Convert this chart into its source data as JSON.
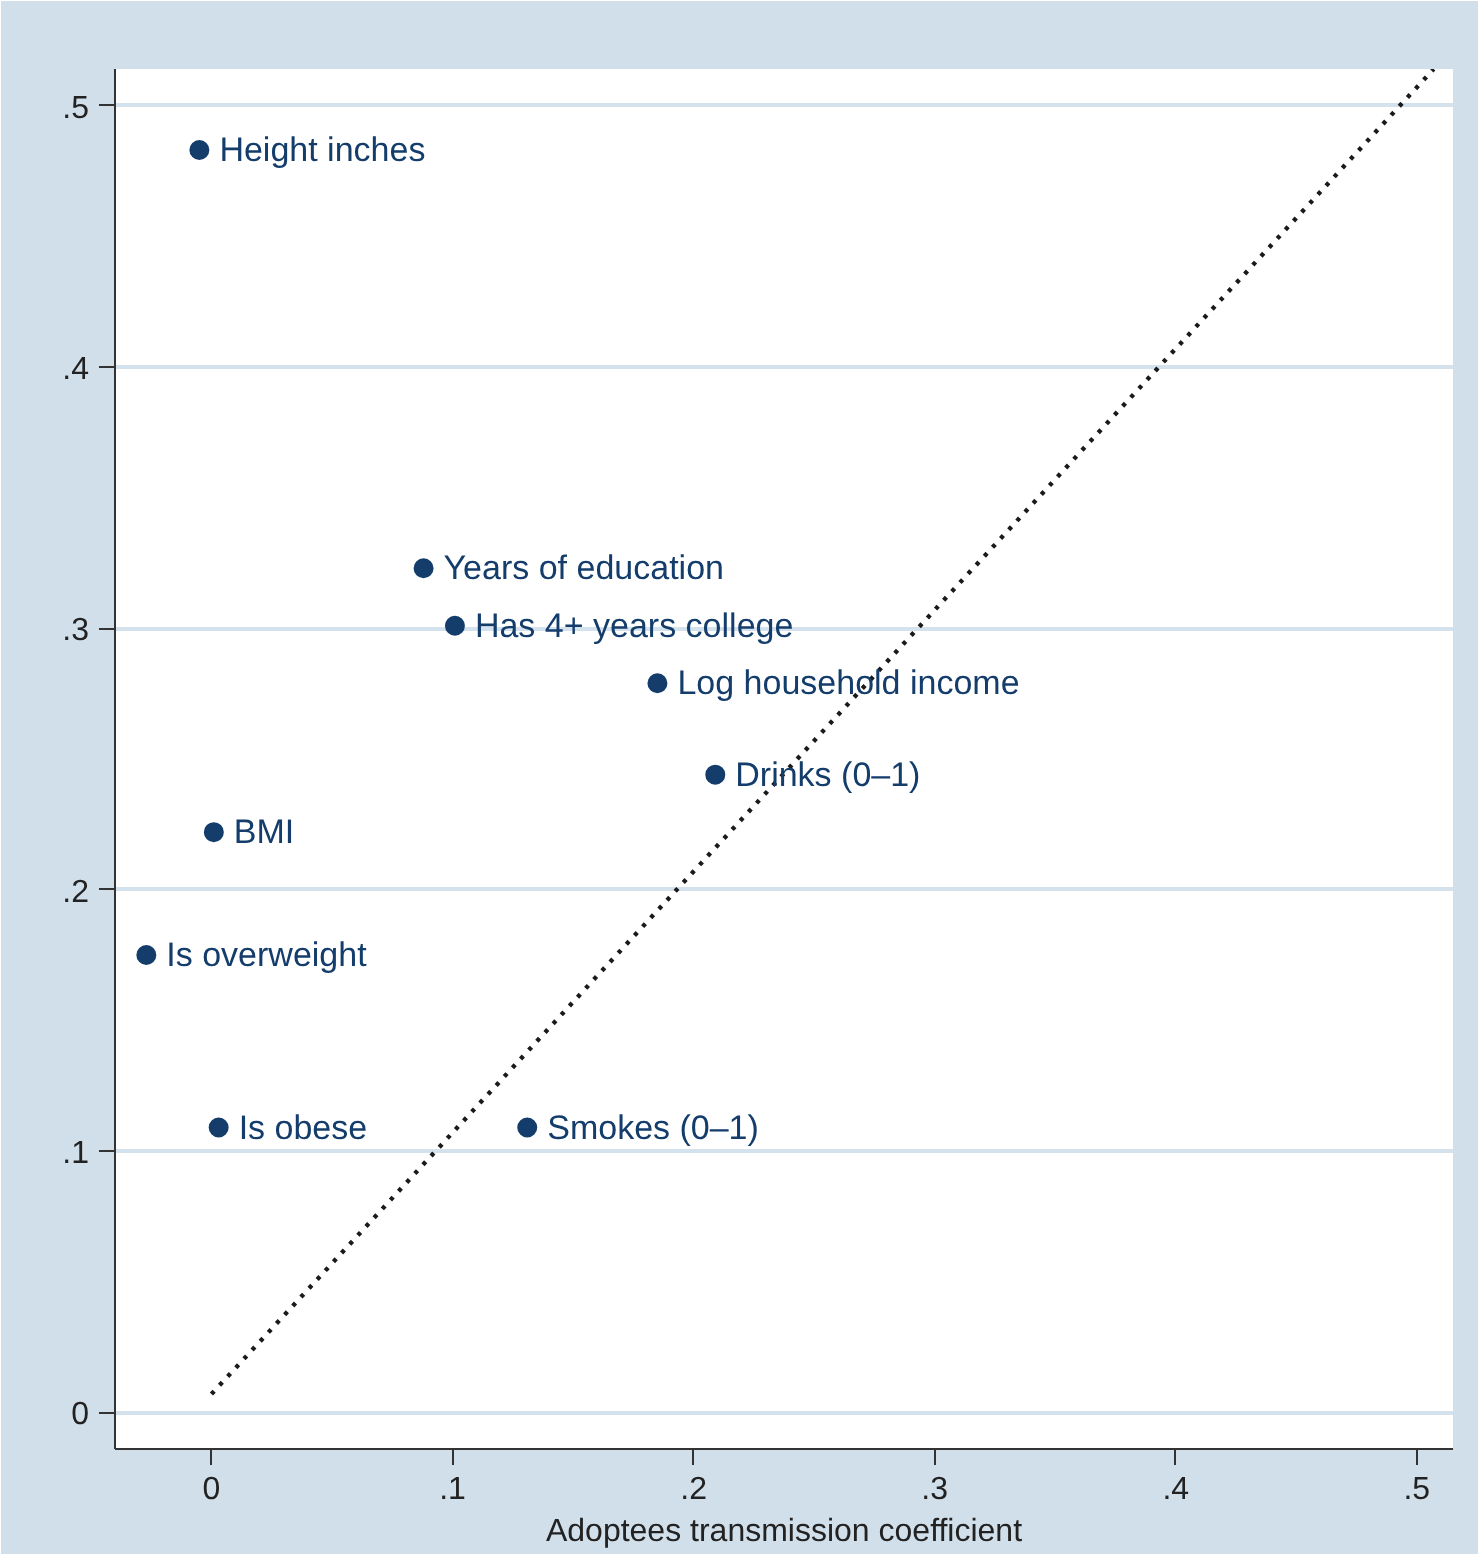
{
  "chart_data": {
    "type": "scatter",
    "xlabel": "Adoptees transmission coefficient",
    "xlim": [
      -0.04,
      0.515
    ],
    "ylim": [
      -0.014,
      0.514
    ],
    "xticks": [
      {
        "value": 0,
        "label": "0"
      },
      {
        "value": 0.1,
        "label": ".1"
      },
      {
        "value": 0.2,
        "label": ".2"
      },
      {
        "value": 0.3,
        "label": ".3"
      },
      {
        "value": 0.4,
        "label": ".4"
      },
      {
        "value": 0.5,
        "label": ".5"
      }
    ],
    "yticks": [
      {
        "value": 0,
        "label": "0"
      },
      {
        "value": 0.1,
        "label": ".1"
      },
      {
        "value": 0.2,
        "label": ".2"
      },
      {
        "value": 0.3,
        "label": ".3"
      },
      {
        "value": 0.4,
        "label": ".4"
      },
      {
        "value": 0.5,
        "label": ".5"
      }
    ],
    "grid": "y",
    "marker": "circle",
    "series": [
      {
        "color": "#143d6b",
        "x": [
          -0.005,
          0.088,
          0.101,
          0.185,
          0.209,
          0.001,
          -0.027,
          0.003,
          0.131
        ],
        "values": [
          0.483,
          0.323,
          0.301,
          0.279,
          0.244,
          0.222,
          0.175,
          0.109,
          0.109
        ]
      },
      {
        "type": "line",
        "color": "#1a1a1a",
        "line_style": "dotted",
        "marker": "none",
        "x": [
          0,
          0.507
        ],
        "values": [
          0.007,
          0.514
        ]
      }
    ],
    "annotations": [
      {
        "text": "Height inches",
        "x": -0.005,
        "y": 0.483
      },
      {
        "text": "Years of education",
        "x": 0.088,
        "y": 0.323
      },
      {
        "text": "Has 4+ years college",
        "x": 0.101,
        "y": 0.301
      },
      {
        "text": "Log household income",
        "x": 0.185,
        "y": 0.279
      },
      {
        "text": "Drinks (0–1)",
        "x": 0.209,
        "y": 0.244
      },
      {
        "text": "BMI",
        "x": 0.001,
        "y": 0.222
      },
      {
        "text": "Is overweight",
        "x": -0.027,
        "y": 0.175
      },
      {
        "text": "Is obese",
        "x": 0.003,
        "y": 0.109
      },
      {
        "text": "Smokes (0–1)",
        "x": 0.131,
        "y": 0.109
      }
    ]
  }
}
